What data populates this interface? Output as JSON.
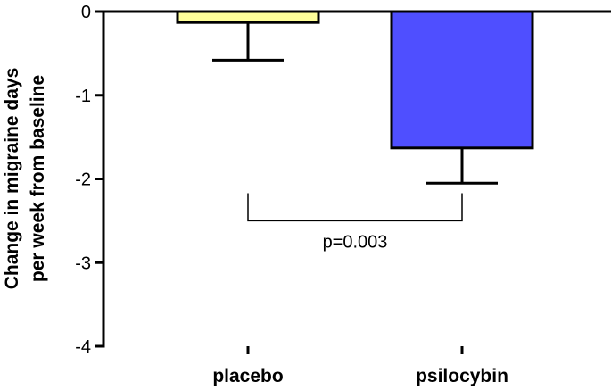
{
  "chart_data": {
    "type": "bar",
    "categories": [
      "placebo",
      "psilocybin"
    ],
    "values": [
      -0.13,
      -1.63
    ],
    "error_low": [
      0.45,
      0.42
    ],
    "colors": [
      "#ffff99",
      "#4f4fff"
    ],
    "ylabel": [
      "Change in migraine days",
      "per week from baseline"
    ],
    "xlabel": "",
    "ylim": [
      -4,
      0
    ],
    "yticks": [
      "0",
      "-1",
      "-2",
      "-3",
      "-4"
    ],
    "grid": false,
    "annotation": {
      "text": "p=0.003",
      "bracket_y": -2.5,
      "bracket_tick_top": -2.17
    }
  }
}
